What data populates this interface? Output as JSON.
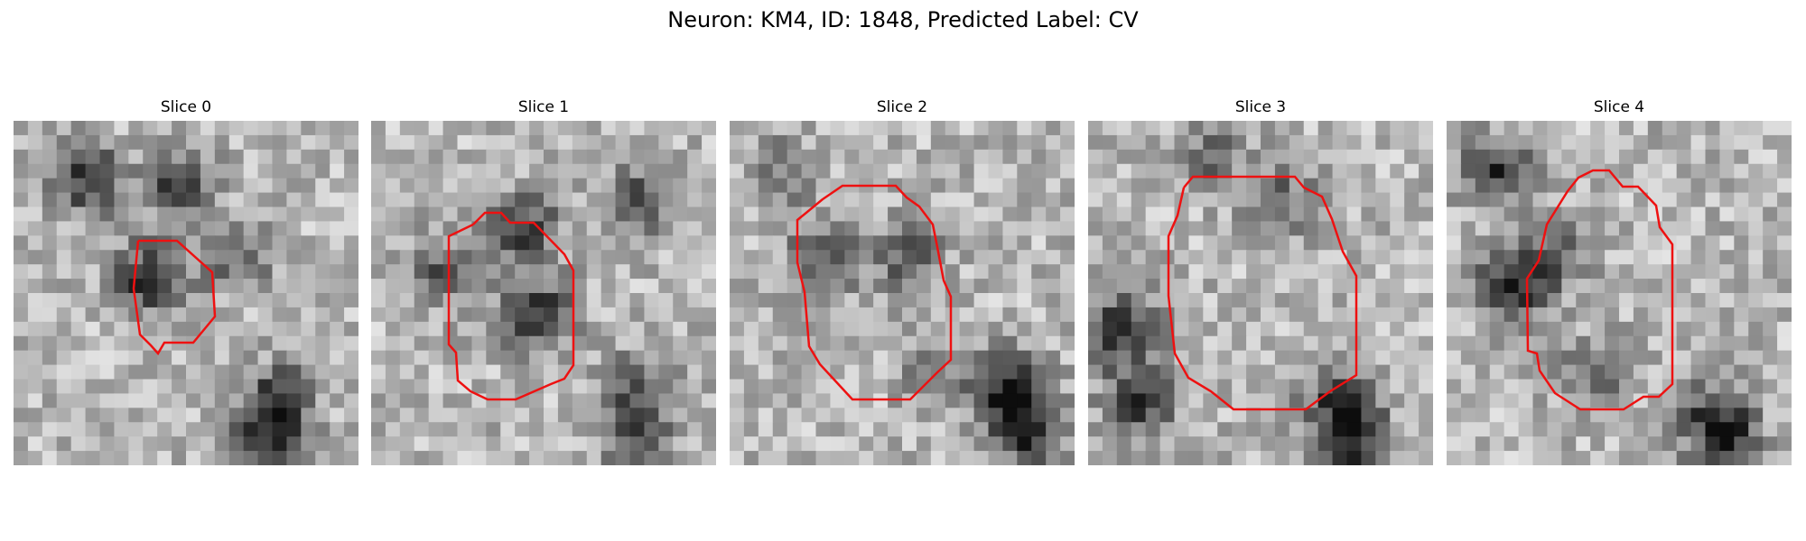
{
  "figure": {
    "title": "Neuron: KM4, ID: 1848, Predicted Label: CV"
  },
  "slices": [
    {
      "label": "Slice 0",
      "dark_spots": [
        [
          11,
          4,
          0.45
        ],
        [
          4.5,
          3.5,
          0.5
        ],
        [
          9,
          10.5,
          0.55
        ],
        [
          15,
          9,
          0.35
        ],
        [
          18,
          19,
          0.5
        ],
        [
          17,
          21.5,
          0.4
        ]
      ]
    },
    {
      "label": "Slice 1",
      "dark_spots": [
        [
          10,
          7,
          0.5
        ],
        [
          4,
          10,
          0.35
        ],
        [
          11,
          13,
          0.55
        ],
        [
          18,
          5,
          0.4
        ],
        [
          18,
          18,
          0.35
        ],
        [
          18,
          21.5,
          0.45
        ]
      ]
    },
    {
      "label": "Slice 2",
      "dark_spots": [
        [
          3,
          3,
          0.25
        ],
        [
          6,
          9,
          0.4
        ],
        [
          12,
          9,
          0.35
        ],
        [
          19,
          18,
          0.55
        ],
        [
          20,
          21,
          0.6
        ],
        [
          14,
          17,
          0.25
        ]
      ]
    },
    {
      "label": "Slice 3",
      "dark_spots": [
        [
          8,
          2,
          0.3
        ],
        [
          2,
          14,
          0.55
        ],
        [
          3,
          19,
          0.5
        ],
        [
          13,
          5,
          0.3
        ],
        [
          17,
          19,
          0.5
        ],
        [
          18,
          22,
          0.5
        ]
      ]
    },
    {
      "label": "Slice 4",
      "dark_spots": [
        [
          3,
          3,
          0.5
        ],
        [
          4,
          11,
          0.55
        ],
        [
          7,
          9,
          0.35
        ],
        [
          10,
          17,
          0.3
        ],
        [
          18,
          20,
          0.35
        ],
        [
          19,
          22,
          0.45
        ]
      ]
    }
  ]
}
